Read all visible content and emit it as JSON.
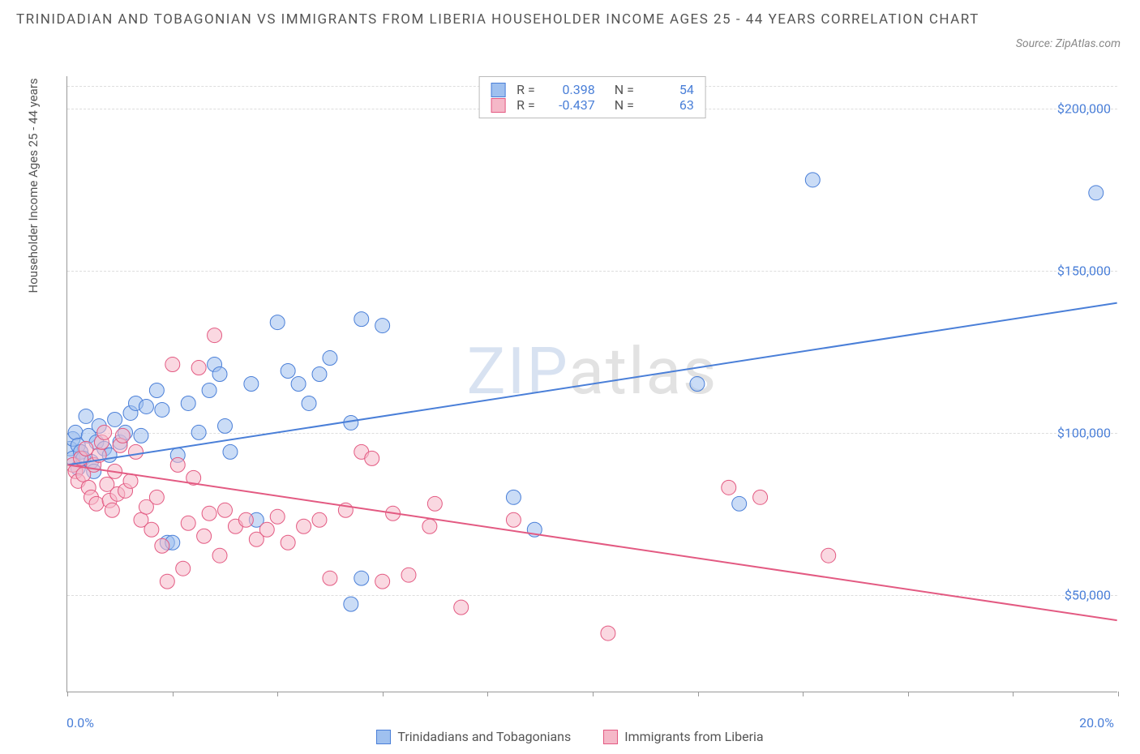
{
  "title": "TRINIDADIAN AND TOBAGONIAN VS IMMIGRANTS FROM LIBERIA HOUSEHOLDER INCOME AGES 25 - 44 YEARS CORRELATION CHART",
  "source": "Source: ZipAtlas.com",
  "y_axis_label": "Householder Income Ages 25 - 44 years",
  "watermark_a": "ZIP",
  "watermark_b": "atlas",
  "chart": {
    "type": "scatter",
    "xlim": [
      0,
      20
    ],
    "ylim": [
      20000,
      210000
    ],
    "x_ticks_pct": [
      0,
      2,
      4,
      6,
      8,
      10,
      12,
      14,
      16,
      18,
      20
    ],
    "x_tick_labels": {
      "left": "0.0%",
      "right": "20.0%"
    },
    "y_ticks": [
      50000,
      100000,
      150000,
      200000
    ],
    "y_tick_labels": [
      "$50,000",
      "$100,000",
      "$150,000",
      "$200,000"
    ],
    "background_color": "#ffffff",
    "grid_color": "#dddddd",
    "marker_radius": 9,
    "marker_opacity": 0.55,
    "line_width": 2,
    "series": [
      {
        "name": "Trinidadians and Tobagonians",
        "color_fill": "#9fc0ef",
        "color_stroke": "#4a7fd8",
        "R": "0.398",
        "N": "54",
        "trend": {
          "x1": 0,
          "y1": 90000,
          "x2": 20,
          "y2": 140000
        },
        "points": [
          [
            0.05,
            95000
          ],
          [
            0.1,
            92000
          ],
          [
            0.1,
            98000
          ],
          [
            0.15,
            100000
          ],
          [
            0.2,
            89000
          ],
          [
            0.2,
            96000
          ],
          [
            0.25,
            94000
          ],
          [
            0.3,
            92000
          ],
          [
            0.35,
            105000
          ],
          [
            0.4,
            99000
          ],
          [
            0.45,
            91000
          ],
          [
            0.5,
            88000
          ],
          [
            0.55,
            97000
          ],
          [
            0.6,
            102000
          ],
          [
            0.7,
            95000
          ],
          [
            0.8,
            93000
          ],
          [
            0.9,
            104000
          ],
          [
            1.0,
            97000
          ],
          [
            1.1,
            100000
          ],
          [
            1.2,
            106000
          ],
          [
            1.3,
            109000
          ],
          [
            1.4,
            99000
          ],
          [
            1.5,
            108000
          ],
          [
            1.7,
            113000
          ],
          [
            1.8,
            107000
          ],
          [
            1.9,
            66000
          ],
          [
            2.0,
            66000
          ],
          [
            2.1,
            93000
          ],
          [
            2.3,
            109000
          ],
          [
            2.5,
            100000
          ],
          [
            2.7,
            113000
          ],
          [
            2.8,
            121000
          ],
          [
            2.9,
            118000
          ],
          [
            3.0,
            102000
          ],
          [
            3.1,
            94000
          ],
          [
            3.5,
            115000
          ],
          [
            3.6,
            73000
          ],
          [
            4.0,
            134000
          ],
          [
            4.2,
            119000
          ],
          [
            4.4,
            115000
          ],
          [
            4.6,
            109000
          ],
          [
            4.8,
            118000
          ],
          [
            5.0,
            123000
          ],
          [
            5.4,
            103000
          ],
          [
            5.6,
            135000
          ],
          [
            5.4,
            47000
          ],
          [
            5.6,
            55000
          ],
          [
            6.0,
            133000
          ],
          [
            8.9,
            70000
          ],
          [
            8.5,
            80000
          ],
          [
            12.0,
            115000
          ],
          [
            12.8,
            78000
          ],
          [
            14.2,
            178000
          ],
          [
            19.6,
            174000
          ]
        ]
      },
      {
        "name": "Immigrants from Liberia",
        "color_fill": "#f5b8c8",
        "color_stroke": "#e35a82",
        "R": "-0.437",
        "N": "63",
        "trend": {
          "x1": 0,
          "y1": 90000,
          "x2": 20,
          "y2": 42000
        },
        "points": [
          [
            0.1,
            90000
          ],
          [
            0.15,
            88000
          ],
          [
            0.2,
            85000
          ],
          [
            0.25,
            92000
          ],
          [
            0.3,
            87000
          ],
          [
            0.35,
            95000
          ],
          [
            0.4,
            83000
          ],
          [
            0.45,
            80000
          ],
          [
            0.5,
            90000
          ],
          [
            0.55,
            78000
          ],
          [
            0.6,
            93000
          ],
          [
            0.65,
            97000
          ],
          [
            0.7,
            100000
          ],
          [
            0.75,
            84000
          ],
          [
            0.8,
            79000
          ],
          [
            0.85,
            76000
          ],
          [
            0.9,
            88000
          ],
          [
            0.95,
            81000
          ],
          [
            1.0,
            96000
          ],
          [
            1.05,
            99000
          ],
          [
            1.1,
            82000
          ],
          [
            1.2,
            85000
          ],
          [
            1.3,
            94000
          ],
          [
            1.4,
            73000
          ],
          [
            1.5,
            77000
          ],
          [
            1.6,
            70000
          ],
          [
            1.7,
            80000
          ],
          [
            1.8,
            65000
          ],
          [
            1.9,
            54000
          ],
          [
            2.0,
            121000
          ],
          [
            2.1,
            90000
          ],
          [
            2.2,
            58000
          ],
          [
            2.3,
            72000
          ],
          [
            2.4,
            86000
          ],
          [
            2.5,
            120000
          ],
          [
            2.6,
            68000
          ],
          [
            2.7,
            75000
          ],
          [
            2.8,
            130000
          ],
          [
            2.9,
            62000
          ],
          [
            3.0,
            76000
          ],
          [
            3.2,
            71000
          ],
          [
            3.4,
            73000
          ],
          [
            3.6,
            67000
          ],
          [
            3.8,
            70000
          ],
          [
            4.0,
            74000
          ],
          [
            4.2,
            66000
          ],
          [
            4.5,
            71000
          ],
          [
            4.8,
            73000
          ],
          [
            5.0,
            55000
          ],
          [
            5.3,
            76000
          ],
          [
            5.6,
            94000
          ],
          [
            5.8,
            92000
          ],
          [
            6.0,
            54000
          ],
          [
            6.2,
            75000
          ],
          [
            6.5,
            56000
          ],
          [
            6.9,
            71000
          ],
          [
            7.0,
            78000
          ],
          [
            7.5,
            46000
          ],
          [
            8.5,
            73000
          ],
          [
            10.3,
            38000
          ],
          [
            12.6,
            83000
          ],
          [
            14.5,
            62000
          ],
          [
            13.2,
            80000
          ]
        ]
      }
    ]
  }
}
